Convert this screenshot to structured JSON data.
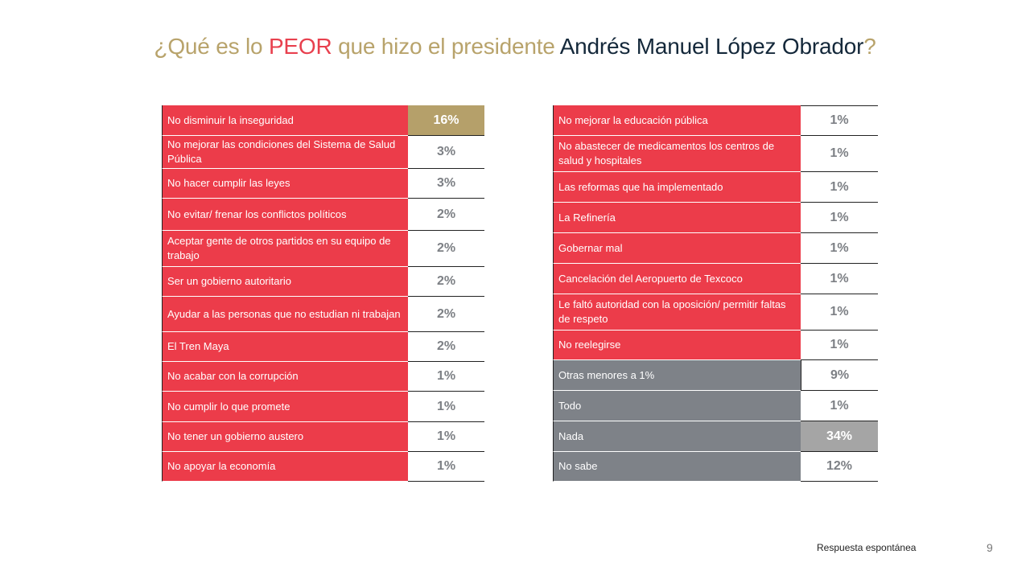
{
  "title": {
    "part1": "¿Qué es lo ",
    "part2": "PEOR",
    "part3": " que hizo el presidente ",
    "part4": "Andrés Manuel López Obrador",
    "part5": "?"
  },
  "colors": {
    "title_gold": "#b8a36b",
    "accent_red": "#ec3c4a",
    "name_navy": "#14283a",
    "gray_label": "#7e8288",
    "highlight_gold": "#b5a06a",
    "highlight_gray": "#a5a5a5"
  },
  "chart_data": {
    "type": "table",
    "title": "¿Qué es lo PEOR que hizo el presidente Andrés Manuel López Obrador?",
    "columns": [
      "Respuesta",
      "Porcentaje"
    ],
    "left_table": [
      {
        "label": "No disminuir la inseguridad",
        "value": "16%",
        "style": "red",
        "highlight": "gold"
      },
      {
        "label": "No mejorar las condiciones del Sistema de Salud Pública",
        "value": "3%",
        "style": "red"
      },
      {
        "label": "No hacer cumplir las leyes",
        "value": "3%",
        "style": "red"
      },
      {
        "label": "No evitar/ frenar los conflictos políticos",
        "value": "2%",
        "style": "red"
      },
      {
        "label": "Aceptar gente de otros partidos en su equipo de trabajo",
        "value": "2%",
        "style": "red"
      },
      {
        "label": "Ser un gobierno autoritario",
        "value": "2%",
        "style": "red"
      },
      {
        "label": "Ayudar a las personas que no estudian ni trabajan",
        "value": "2%",
        "style": "red"
      },
      {
        "label": "El Tren Maya",
        "value": "2%",
        "style": "red"
      },
      {
        "label": "No acabar con la corrupción",
        "value": "1%",
        "style": "red"
      },
      {
        "label": "No cumplir lo que promete",
        "value": "1%",
        "style": "red"
      },
      {
        "label": "No tener un gobierno austero",
        "value": "1%",
        "style": "red"
      },
      {
        "label": "No apoyar la economía",
        "value": "1%",
        "style": "red"
      }
    ],
    "right_table": [
      {
        "label": "No mejorar la educación pública",
        "value": "1%",
        "style": "red"
      },
      {
        "label": "No abastecer de medicamentos los centros de salud y hospitales",
        "value": "1%",
        "style": "red"
      },
      {
        "label": "Las reformas que ha implementado",
        "value": "1%",
        "style": "red"
      },
      {
        "label": "La Refinería",
        "value": "1%",
        "style": "red"
      },
      {
        "label": "Gobernar mal",
        "value": "1%",
        "style": "red"
      },
      {
        "label": "Cancelación del Aeropuerto de Texcoco",
        "value": "1%",
        "style": "red"
      },
      {
        "label": "Le faltó autoridad con la oposición/ permitir faltas de respeto",
        "value": "1%",
        "style": "red"
      },
      {
        "label": "No reelegirse",
        "value": "1%",
        "style": "red"
      },
      {
        "label": "Otras menores a 1%",
        "value": "9%",
        "style": "gray",
        "boxed": true
      },
      {
        "label": "Todo",
        "value": "1%",
        "style": "gray"
      },
      {
        "label": "Nada",
        "value": "34%",
        "style": "gray",
        "highlight": "gray"
      },
      {
        "label": "No sabe",
        "value": "12%",
        "style": "gray"
      }
    ]
  },
  "footer": {
    "note": "Respuesta espontánea",
    "page_number": "9"
  }
}
